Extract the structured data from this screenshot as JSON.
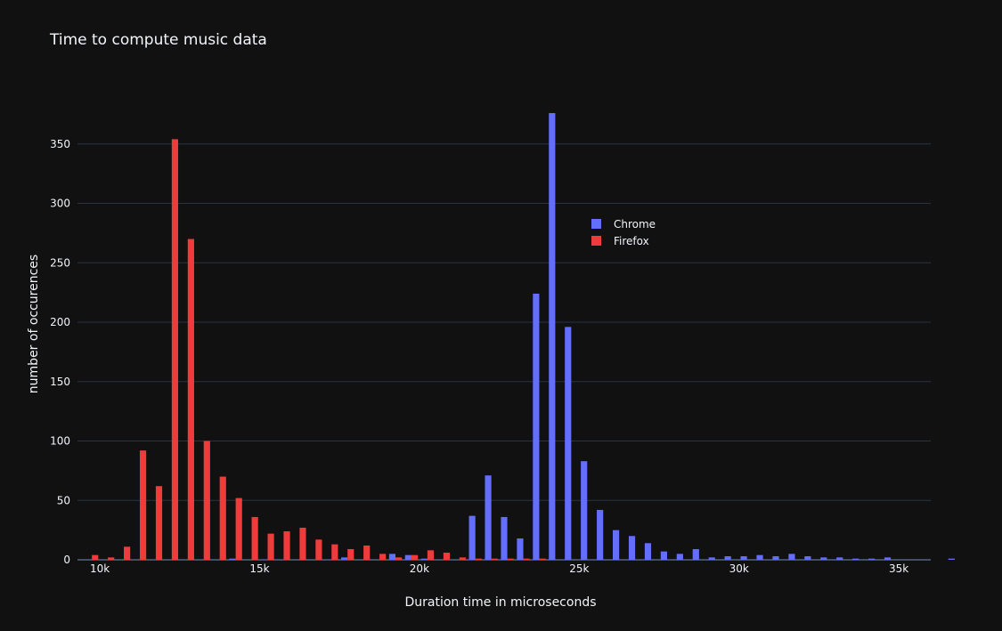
{
  "chart_data": {
    "type": "bar",
    "title": "Time to compute music data",
    "xlabel": "Duration time in microseconds",
    "ylabel": "number of occurences",
    "xlim": [
      9300,
      36000
    ],
    "ylim": [
      0,
      400
    ],
    "xticks": [
      10000,
      15000,
      20000,
      25000,
      30000,
      35000
    ],
    "xtick_labels": [
      "10k",
      "15k",
      "20k",
      "25k",
      "30k",
      "35k"
    ],
    "yticks": [
      0,
      50,
      100,
      150,
      200,
      250,
      300,
      350
    ],
    "yticks_labels": [
      "0",
      "50",
      "100",
      "150",
      "200",
      "250",
      "300",
      "350"
    ],
    "grid": true,
    "legend_position": "upper-right-inside",
    "bin_start": 9500,
    "bin_width": 500,
    "series": [
      {
        "name": "Chrome",
        "color": "#636efa",
        "values": [
          0,
          0,
          0,
          0,
          0,
          0,
          0,
          0,
          0,
          1,
          0,
          0,
          0,
          0,
          0,
          0,
          2,
          0,
          0,
          5,
          4,
          1,
          0,
          0,
          37,
          71,
          36,
          18,
          224,
          376,
          196,
          83,
          42,
          25,
          20,
          14,
          7,
          5,
          9,
          2,
          3,
          3,
          4,
          3,
          5,
          3,
          2,
          2,
          1,
          1,
          2,
          0,
          0,
          0,
          1,
          0,
          0,
          0,
          0,
          0,
          0,
          0,
          0,
          0,
          0,
          0,
          0,
          0,
          0,
          0,
          0,
          0,
          0,
          0,
          0,
          0,
          0,
          0,
          0,
          0,
          0,
          0,
          0,
          0,
          0,
          0,
          0,
          0,
          0,
          0,
          0,
          0,
          0,
          0,
          0,
          0,
          0,
          0,
          0,
          0,
          0,
          0,
          0,
          0,
          0,
          0,
          0,
          0,
          0,
          0,
          0,
          0,
          0,
          0,
          0,
          0,
          0,
          0,
          0,
          0,
          0,
          0,
          0,
          0,
          0,
          0,
          0,
          0,
          0,
          0,
          0,
          0,
          0,
          0,
          0,
          0,
          0,
          0,
          0,
          0,
          0,
          0,
          0,
          0,
          0,
          0,
          0,
          0,
          0,
          0,
          0,
          0,
          0,
          0,
          0,
          0,
          0,
          0,
          0,
          0,
          0,
          0,
          0,
          0,
          0,
          0,
          0,
          0,
          0,
          0,
          0,
          0,
          0,
          0,
          0,
          0,
          0,
          0,
          0,
          0,
          0,
          0,
          0,
          0,
          0,
          0,
          0,
          0,
          0,
          0,
          0,
          0,
          0,
          0,
          0,
          0,
          0,
          0,
          0,
          0,
          0,
          0,
          0,
          0,
          0,
          0,
          0,
          0,
          0,
          0,
          0,
          0,
          1
        ]
      },
      {
        "name": "Firefox",
        "color": "#ef3b3b",
        "values": [
          4,
          2,
          11,
          92,
          62,
          354,
          270,
          100,
          70,
          52,
          36,
          22,
          24,
          27,
          17,
          13,
          9,
          12,
          5,
          2,
          4,
          8,
          6,
          2,
          1,
          1,
          1,
          1,
          1,
          0,
          0,
          0,
          0,
          0,
          0,
          0,
          0,
          0,
          0,
          0,
          0,
          0,
          0,
          0,
          0,
          0,
          0,
          0,
          0,
          0,
          0,
          0,
          0,
          0
        ]
      }
    ]
  }
}
